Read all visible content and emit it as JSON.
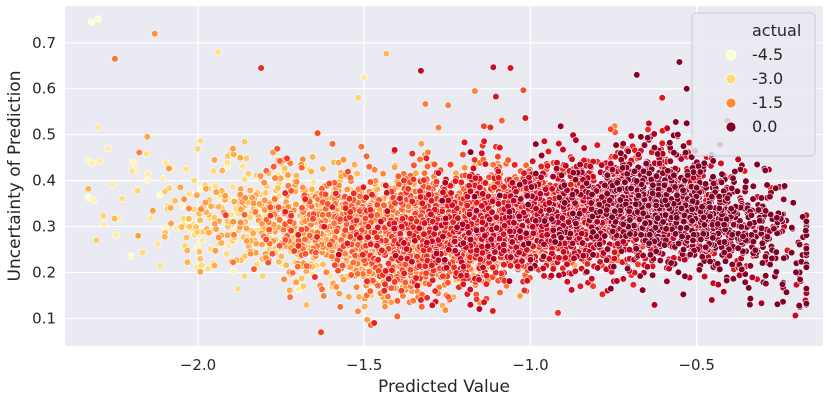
{
  "chart_data": {
    "type": "scatter",
    "title": "",
    "xlabel": "Predicted Value",
    "ylabel": "Uncertainty of Prediction",
    "xlim": [
      -2.4,
      -0.12
    ],
    "ylim": [
      0.04,
      0.78
    ],
    "x_ticks": [
      -2.0,
      -1.5,
      -1.0,
      -0.5
    ],
    "x_tick_labels": [
      "−2.0",
      "−1.5",
      "−1.0",
      "−0.5"
    ],
    "y_ticks": [
      0.1,
      0.2,
      0.3,
      0.4,
      0.5,
      0.6,
      0.7
    ],
    "y_tick_labels": [
      "0.1",
      "0.2",
      "0.3",
      "0.4",
      "0.5",
      "0.6",
      "0.7"
    ],
    "grid": true,
    "background_color": "#eaeaf2",
    "grid_color": "#ffffff",
    "hue_variable": "actual",
    "legend": {
      "title": "actual",
      "position": "top-right",
      "entries": [
        {
          "label": "-4.5",
          "value": -4.5,
          "color": "#ffffcc"
        },
        {
          "label": "-3.0",
          "value": -3.0,
          "color": "#fed976"
        },
        {
          "label": "-1.5",
          "value": -1.5,
          "color": "#fd8d3c"
        },
        {
          "label": "0.0",
          "value": 0.0,
          "color": "#800026"
        }
      ]
    },
    "colormap": [
      "#ffffcc",
      "#ffeda0",
      "#fed976",
      "#feb24c",
      "#fd8d3c",
      "#fc4e2a",
      "#e31a1c",
      "#bd0026",
      "#800026"
    ],
    "actual_range": [
      -4.5,
      0.0
    ],
    "point_count_approx": 6000,
    "sample_points": [
      {
        "x": -2.32,
        "y": 0.745,
        "actual": -4.6
      },
      {
        "x": -2.3,
        "y": 0.752,
        "actual": -4.5
      },
      {
        "x": -2.13,
        "y": 0.72,
        "actual": -2.3
      },
      {
        "x": -2.25,
        "y": 0.665,
        "actual": -2.0
      },
      {
        "x": -2.3,
        "y": 0.515,
        "actual": -3.8
      },
      {
        "x": -2.27,
        "y": 0.47,
        "actual": -3.9
      },
      {
        "x": -2.18,
        "y": 0.28,
        "actual": -2.5
      },
      {
        "x": -1.94,
        "y": 0.68,
        "actual": -3.6
      },
      {
        "x": -1.5,
        "y": 0.625,
        "actual": -3.9
      },
      {
        "x": -1.81,
        "y": 0.645,
        "actual": -1.3
      },
      {
        "x": -1.06,
        "y": 0.645,
        "actual": -1.0
      },
      {
        "x": -0.68,
        "y": 0.63,
        "actual": -0.1
      },
      {
        "x": -0.53,
        "y": 0.6,
        "actual": 0.0
      },
      {
        "x": -1.63,
        "y": 0.07,
        "actual": -1.5
      },
      {
        "x": -1.47,
        "y": 0.09,
        "actual": -1.2
      },
      {
        "x": -0.34,
        "y": 0.13,
        "actual": 0.0
      },
      {
        "x": -0.17,
        "y": 0.13,
        "actual": 0.0
      },
      {
        "x": -0.19,
        "y": 0.125,
        "actual": 0.0
      },
      {
        "x": -0.2,
        "y": 0.22,
        "actual": 0.0
      },
      {
        "x": -0.29,
        "y": 0.24,
        "actual": -0.2
      }
    ],
    "trend_note": "Points shift from light yellow (left, predicted ≈ -2.2) to dark red (right, predicted ≈ -0.2); uncertainty mostly between 0.15 and 0.45."
  }
}
